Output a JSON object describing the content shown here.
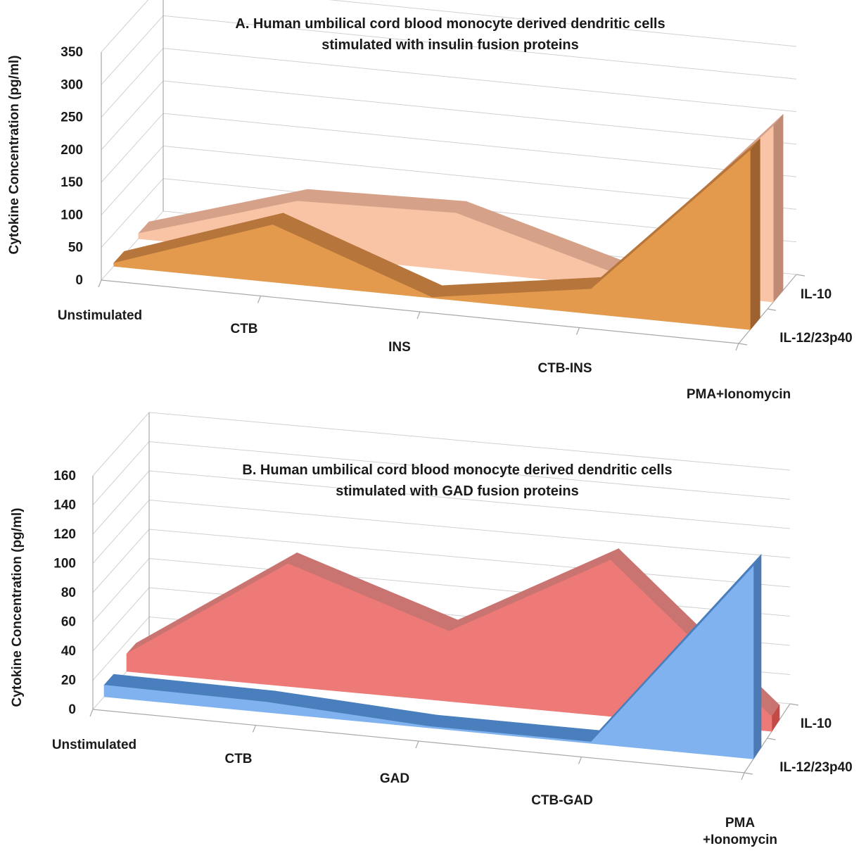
{
  "chart_data": [
    {
      "id": "A",
      "type": "area",
      "variant": "3d",
      "title_lines": [
        "A.  Human umbilical cord blood  monocyte   derived dendritic cells",
        "stimulated with insulin fusion proteins"
      ],
      "ylabel": "Cytokine Concentration (pg/ml)",
      "ylim": [
        0,
        350
      ],
      "yticks": [
        "0",
        "50",
        "100",
        "150",
        "200",
        "250",
        "300",
        "350"
      ],
      "categories": [
        "Unstimulated",
        "CTB",
        "INS",
        "CTB-INS",
        "PMA+Ionomycin"
      ],
      "series": [
        {
          "name": "IL-10",
          "values": [
            8,
            82,
            88,
            20,
            270
          ],
          "colors": {
            "front": "#f9c4a5",
            "top": "#d6a189",
            "side": "#c08b74"
          }
        },
        {
          "name": "IL-12/23p40",
          "values": [
            5,
            88,
            1,
            38,
            275
          ],
          "colors": {
            "front": "#e39a4d",
            "top": "#b6753a",
            "side": "#9d6230"
          }
        }
      ],
      "grid": true
    },
    {
      "id": "B",
      "type": "area",
      "variant": "3d",
      "title_lines": [
        "B. Human umbilical cord blood  monocyte   derived dendritic cells",
        "stimulated with GAD fusion proteins"
      ],
      "ylabel": "Cytokine Concentration (pg/ml)",
      "ylim": [
        0,
        160
      ],
      "yticks": [
        "0",
        "20",
        "40",
        "60",
        "80",
        "100",
        "120",
        "140",
        "160"
      ],
      "categories": [
        "Unstimulated",
        "CTB",
        "GAD",
        "CTB-GAD",
        "PMA\n+Ionomycin"
      ],
      "series": [
        {
          "name": "IL-10",
          "values": [
            12,
            84,
            48,
            107,
            10
          ],
          "colors": {
            "front": "#ee7a78",
            "top": "#c97470",
            "side": "#c44a46"
          }
        },
        {
          "name": "IL-12/23p40",
          "values": [
            8,
            7,
            1,
            1,
            132
          ],
          "colors": {
            "front": "#7fb2ef",
            "top": "#4a7fbe",
            "side": "#4a79b3"
          }
        }
      ],
      "grid": true
    }
  ]
}
